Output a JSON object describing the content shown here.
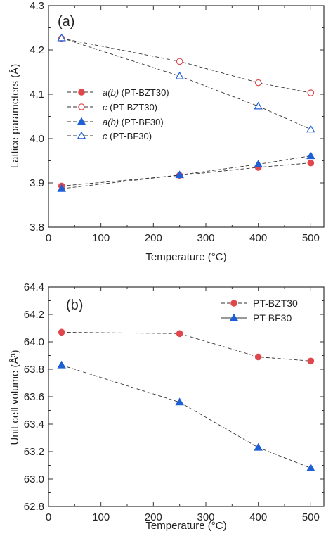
{
  "chart_data": [
    {
      "type": "line",
      "panel_label": "(a)",
      "xlabel": "Temperature (°C)",
      "ylabel": "Lattice parameters (Å)",
      "xlim": [
        0,
        525
      ],
      "ylim": [
        3.8,
        4.3
      ],
      "xticks": [
        "0",
        "100",
        "200",
        "300",
        "400",
        "500"
      ],
      "yticks": [
        "3.8",
        "3.9",
        "4.0",
        "4.1",
        "4.2",
        "4.3"
      ],
      "grid": false,
      "legend_position": "left-middle",
      "series": [
        {
          "name": "a(b) (PT-BZT30)",
          "marker": "filled-circle",
          "color": "#e0474c",
          "x": [
            25,
            250,
            400,
            500
          ],
          "y": [
            3.893,
            3.917,
            3.935,
            3.945
          ]
        },
        {
          "name": "c (PT-BZT30)",
          "marker": "open-circle",
          "color": "#e0474c",
          "x": [
            25,
            250,
            400,
            500
          ],
          "y": [
            4.226,
            4.174,
            4.126,
            4.103
          ]
        },
        {
          "name": "a(b) (PT-BF30)",
          "marker": "filled-triangle",
          "color": "#1f5fd6",
          "x": [
            25,
            250,
            400,
            500
          ],
          "y": [
            3.887,
            3.918,
            3.942,
            3.961
          ]
        },
        {
          "name": "c (PT-BF30)",
          "marker": "open-triangle",
          "color": "#1f5fd6",
          "x": [
            25,
            250,
            400,
            500
          ],
          "y": [
            4.227,
            4.141,
            4.073,
            4.021
          ]
        }
      ],
      "legend": [
        {
          "italic": "a(b)",
          "text": " (PT-BZT30)"
        },
        {
          "italic": "c",
          "text": " (PT-BZT30)"
        },
        {
          "italic": "a(b)",
          "text": " (PT-BF30)"
        },
        {
          "italic": "c",
          "text": " (PT-BF30)"
        }
      ]
    },
    {
      "type": "line",
      "panel_label": "(b)",
      "xlabel": "Temperature (°C)",
      "ylabel": "Unit cell volume (Å³)",
      "xlim": [
        0,
        525
      ],
      "ylim": [
        62.8,
        64.4
      ],
      "xticks": [
        "0",
        "100",
        "200",
        "300",
        "400",
        "500"
      ],
      "yticks": [
        "62.8",
        "63.0",
        "63.2",
        "63.4",
        "63.6",
        "63.8",
        "64.0",
        "64.2",
        "64.4"
      ],
      "grid": false,
      "legend_position": "top-right",
      "series": [
        {
          "name": "PT-BZT30",
          "marker": "filled-circle",
          "color": "#e0474c",
          "x": [
            25,
            250,
            400,
            500
          ],
          "y": [
            64.07,
            64.06,
            63.89,
            63.86
          ]
        },
        {
          "name": "PT-BF30",
          "marker": "filled-triangle",
          "color": "#1f5fd6",
          "x": [
            25,
            250,
            400,
            500
          ],
          "y": [
            63.83,
            63.56,
            63.23,
            63.08
          ]
        }
      ]
    }
  ]
}
